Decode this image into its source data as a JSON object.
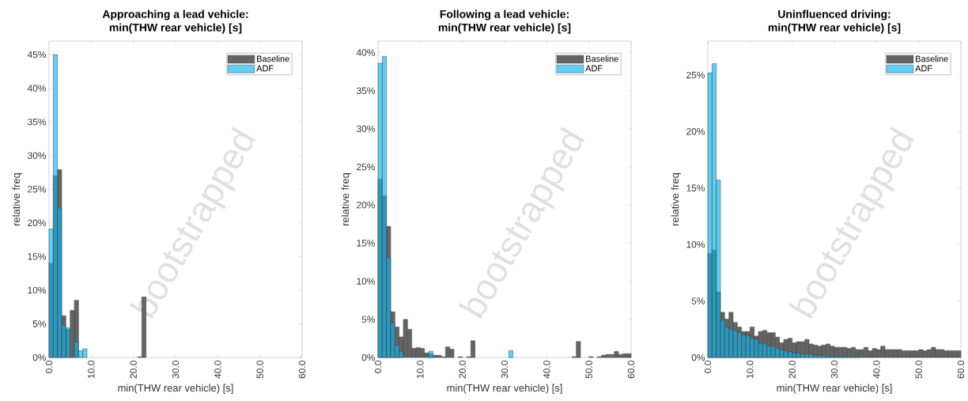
{
  "chart_data": [
    {
      "type": "histogram",
      "title": "Approaching a lead vehicle:",
      "subtitle": "min(THW rear vehicle) [s]",
      "xlabel": "min(THW rear vehicle) [s]",
      "ylabel": "relative freq",
      "annotations": [
        "bootstrapped"
      ],
      "legend": "top right",
      "bins": [
        0,
        1,
        2,
        3,
        4,
        5,
        6,
        7,
        8,
        9,
        10,
        11,
        12,
        13,
        14,
        15,
        16,
        17,
        18,
        19,
        20,
        21,
        22,
        23,
        24,
        25,
        26,
        27,
        28,
        29,
        30,
        31,
        32,
        33,
        34,
        35,
        36,
        37,
        38,
        39,
        40,
        41,
        42,
        43,
        44,
        45,
        46,
        47,
        48,
        49,
        50,
        51,
        52,
        53,
        54,
        55,
        56,
        57,
        58,
        59,
        60
      ],
      "xlim": [
        0,
        60
      ],
      "xticks": [
        {
          "value": 0,
          "label": "0.0"
        },
        {
          "value": 10,
          "label": "10.0"
        },
        {
          "value": 20,
          "label": "20.0"
        },
        {
          "value": 30,
          "label": "30.0"
        },
        {
          "value": 40,
          "label": "40.0"
        },
        {
          "value": 50,
          "label": "50.0"
        },
        {
          "value": 60,
          "label": "60.0"
        }
      ],
      "ylim": [
        0,
        47
      ],
      "yticks": [
        {
          "value": 0,
          "label": "0%"
        },
        {
          "value": 5,
          "label": "5%"
        },
        {
          "value": 10,
          "label": "10%"
        },
        {
          "value": 15,
          "label": "15%"
        },
        {
          "value": 20,
          "label": "20%"
        },
        {
          "value": 25,
          "label": "25%"
        },
        {
          "value": 30,
          "label": "30%"
        },
        {
          "value": 35,
          "label": "35%"
        },
        {
          "value": 40,
          "label": "40%"
        },
        {
          "value": 45,
          "label": "45%"
        }
      ],
      "series": [
        {
          "name": "Baseline",
          "color": "#646464",
          "values": [
            14.0,
            27.0,
            27.9,
            6.2,
            4.2,
            7.0,
            8.5,
            0,
            0,
            0,
            0,
            0,
            0,
            0,
            0,
            0,
            0,
            0,
            0,
            0,
            0,
            0.1,
            9.0,
            0,
            0,
            0,
            0,
            0,
            0,
            0,
            0,
            0,
            0,
            0,
            0,
            0,
            0,
            0,
            0,
            0,
            0,
            0,
            0,
            0,
            0,
            0,
            0,
            0,
            0,
            0,
            0,
            0,
            0,
            0,
            0,
            0,
            0,
            0,
            0,
            0
          ]
        },
        {
          "name": "ADF",
          "color": "#62cdf2",
          "values": [
            19.1,
            45.0,
            22.2,
            4.8,
            4.4,
            0,
            2.3,
            1.0,
            1.3,
            0,
            0,
            0,
            0,
            0,
            0,
            0,
            0,
            0,
            0,
            0,
            0,
            0,
            0,
            0,
            0,
            0,
            0,
            0,
            0,
            0,
            0,
            0,
            0,
            0,
            0,
            0,
            0,
            0,
            0,
            0,
            0,
            0,
            0,
            0,
            0,
            0,
            0,
            0,
            0,
            0,
            0,
            0,
            0,
            0,
            0,
            0,
            0,
            0,
            0,
            0
          ]
        }
      ]
    },
    {
      "type": "histogram",
      "title": "Following a lead vehicle:",
      "subtitle": "min(THW rear vehicle) [s]",
      "xlabel": "min(THW rear vehicle) [s]",
      "ylabel": "relative freq",
      "annotations": [
        "bootstrapped"
      ],
      "legend": "top right",
      "bins": [
        0,
        1,
        2,
        3,
        4,
        5,
        6,
        7,
        8,
        9,
        10,
        11,
        12,
        13,
        14,
        15,
        16,
        17,
        18,
        19,
        20,
        21,
        22,
        23,
        24,
        25,
        26,
        27,
        28,
        29,
        30,
        31,
        32,
        33,
        34,
        35,
        36,
        37,
        38,
        39,
        40,
        41,
        42,
        43,
        44,
        45,
        46,
        47,
        48,
        49,
        50,
        51,
        52,
        53,
        54,
        55,
        56,
        57,
        58,
        59,
        60
      ],
      "xlim": [
        0,
        60
      ],
      "xticks": [
        {
          "value": 0,
          "label": "0.0"
        },
        {
          "value": 10,
          "label": "10.0"
        },
        {
          "value": 20,
          "label": "20.0"
        },
        {
          "value": 30,
          "label": "30.0"
        },
        {
          "value": 40,
          "label": "40.0"
        },
        {
          "value": 50,
          "label": "50.0"
        },
        {
          "value": 60,
          "label": "60.0"
        }
      ],
      "ylim": [
        0,
        41.5
      ],
      "yticks": [
        {
          "value": 0,
          "label": "0%"
        },
        {
          "value": 5,
          "label": "5%"
        },
        {
          "value": 10,
          "label": "10%"
        },
        {
          "value": 15,
          "label": "15%"
        },
        {
          "value": 20,
          "label": "20%"
        },
        {
          "value": 25,
          "label": "25%"
        },
        {
          "value": 30,
          "label": "30%"
        },
        {
          "value": 35,
          "label": "35%"
        },
        {
          "value": 40,
          "label": "40%"
        }
      ],
      "series": [
        {
          "name": "Baseline",
          "color": "#646464",
          "values": [
            23.4,
            21.2,
            17.2,
            6.0,
            4.0,
            2.7,
            5.0,
            3.7,
            1.2,
            1.3,
            1.2,
            0.6,
            0.5,
            0.3,
            0.3,
            0.1,
            1.4,
            1.1,
            0,
            0.1,
            0,
            0.1,
            2.2,
            0,
            0,
            0,
            0,
            0,
            0,
            0,
            0,
            0,
            0,
            0,
            0,
            0,
            0,
            0,
            0,
            0,
            0,
            0,
            0,
            0,
            0,
            0,
            0.1,
            2.1,
            0,
            0,
            0.1,
            0,
            0.1,
            0.3,
            0.4,
            0.4,
            0.8,
            0.4,
            0.5,
            0.5
          ]
        },
        {
          "name": "ADF",
          "color": "#62cdf2",
          "values": [
            38.6,
            39.5,
            13.1,
            4.5,
            1.6,
            0.8,
            0,
            0,
            0,
            0,
            0,
            0,
            0.8,
            0,
            0,
            0,
            0,
            0,
            0,
            0,
            0,
            0,
            0,
            0,
            0,
            0,
            0,
            0,
            0,
            0,
            0,
            0.9,
            0,
            0,
            0,
            0,
            0,
            0,
            0,
            0,
            0,
            0,
            0,
            0,
            0,
            0,
            0,
            0,
            0,
            0,
            0,
            0,
            0,
            0,
            0,
            0,
            0,
            0,
            0,
            0
          ]
        }
      ]
    },
    {
      "type": "histogram",
      "title": "Uninfluenced driving:",
      "subtitle": "min(THW rear vehicle) [s]",
      "xlabel": "min(THW rear vehicle) [s]",
      "ylabel": "relative freq",
      "annotations": [
        "bootstrapped"
      ],
      "legend": "top right",
      "bins": [
        0,
        1,
        2,
        3,
        4,
        5,
        6,
        7,
        8,
        9,
        10,
        11,
        12,
        13,
        14,
        15,
        16,
        17,
        18,
        19,
        20,
        21,
        22,
        23,
        24,
        25,
        26,
        27,
        28,
        29,
        30,
        31,
        32,
        33,
        34,
        35,
        36,
        37,
        38,
        39,
        40,
        41,
        42,
        43,
        44,
        45,
        46,
        47,
        48,
        49,
        50,
        51,
        52,
        53,
        54,
        55,
        56,
        57,
        58,
        59,
        60
      ],
      "xlim": [
        0,
        60
      ],
      "xticks": [
        {
          "value": 0,
          "label": "0.0"
        },
        {
          "value": 10,
          "label": "10.0"
        },
        {
          "value": 20,
          "label": "20.0"
        },
        {
          "value": 30,
          "label": "30.0"
        },
        {
          "value": 40,
          "label": "40.0"
        },
        {
          "value": 50,
          "label": "50.0"
        },
        {
          "value": 60,
          "label": "60.0"
        }
      ],
      "ylim": [
        0,
        28
      ],
      "yticks": [
        {
          "value": 0,
          "label": "0%"
        },
        {
          "value": 5,
          "label": "5%"
        },
        {
          "value": 10,
          "label": "10%"
        },
        {
          "value": 15,
          "label": "15%"
        },
        {
          "value": 20,
          "label": "20%"
        },
        {
          "value": 25,
          "label": "25%"
        }
      ],
      "series": [
        {
          "name": "Baseline",
          "color": "#646464",
          "values": [
            9.2,
            9.5,
            5.8,
            4.0,
            3.4,
            4.0,
            3.1,
            2.7,
            2.3,
            2.3,
            2.7,
            1.9,
            2.3,
            2.4,
            2.2,
            2.2,
            1.8,
            1.3,
            1.6,
            1.7,
            1.3,
            1.4,
            1.4,
            1.6,
            1.2,
            1.1,
            1.0,
            1.1,
            1.2,
            1.0,
            0.9,
            0.9,
            0.9,
            0.8,
            0.9,
            0.7,
            0.7,
            0.9,
            0.6,
            0.8,
            0.7,
            1.0,
            0.7,
            0.7,
            0.7,
            0.7,
            0.6,
            0.6,
            0.6,
            0.6,
            0.7,
            0.6,
            0.7,
            0.9,
            0.7,
            0.7,
            0.6,
            0.6,
            0.6,
            0.6
          ]
        },
        {
          "name": "ADF",
          "color": "#62cdf2",
          "values": [
            25.2,
            26.0,
            15.7,
            3.3,
            2.7,
            2.5,
            2.4,
            2.2,
            2.0,
            1.9,
            1.7,
            1.6,
            1.3,
            1.2,
            1.0,
            1.0,
            0.8,
            0.7,
            0.6,
            0.5,
            0.4,
            0.4,
            0.3,
            0.3,
            0.3,
            0.2,
            0.2,
            0.2,
            0.1,
            0.1,
            0.1,
            0.1,
            0.1,
            0.1,
            0.1,
            0.1,
            0,
            0,
            0,
            0,
            0,
            0,
            0,
            0,
            0,
            0,
            0,
            0,
            0,
            0,
            0,
            0,
            0,
            0,
            0,
            0,
            0,
            0,
            0,
            0
          ]
        }
      ]
    }
  ]
}
